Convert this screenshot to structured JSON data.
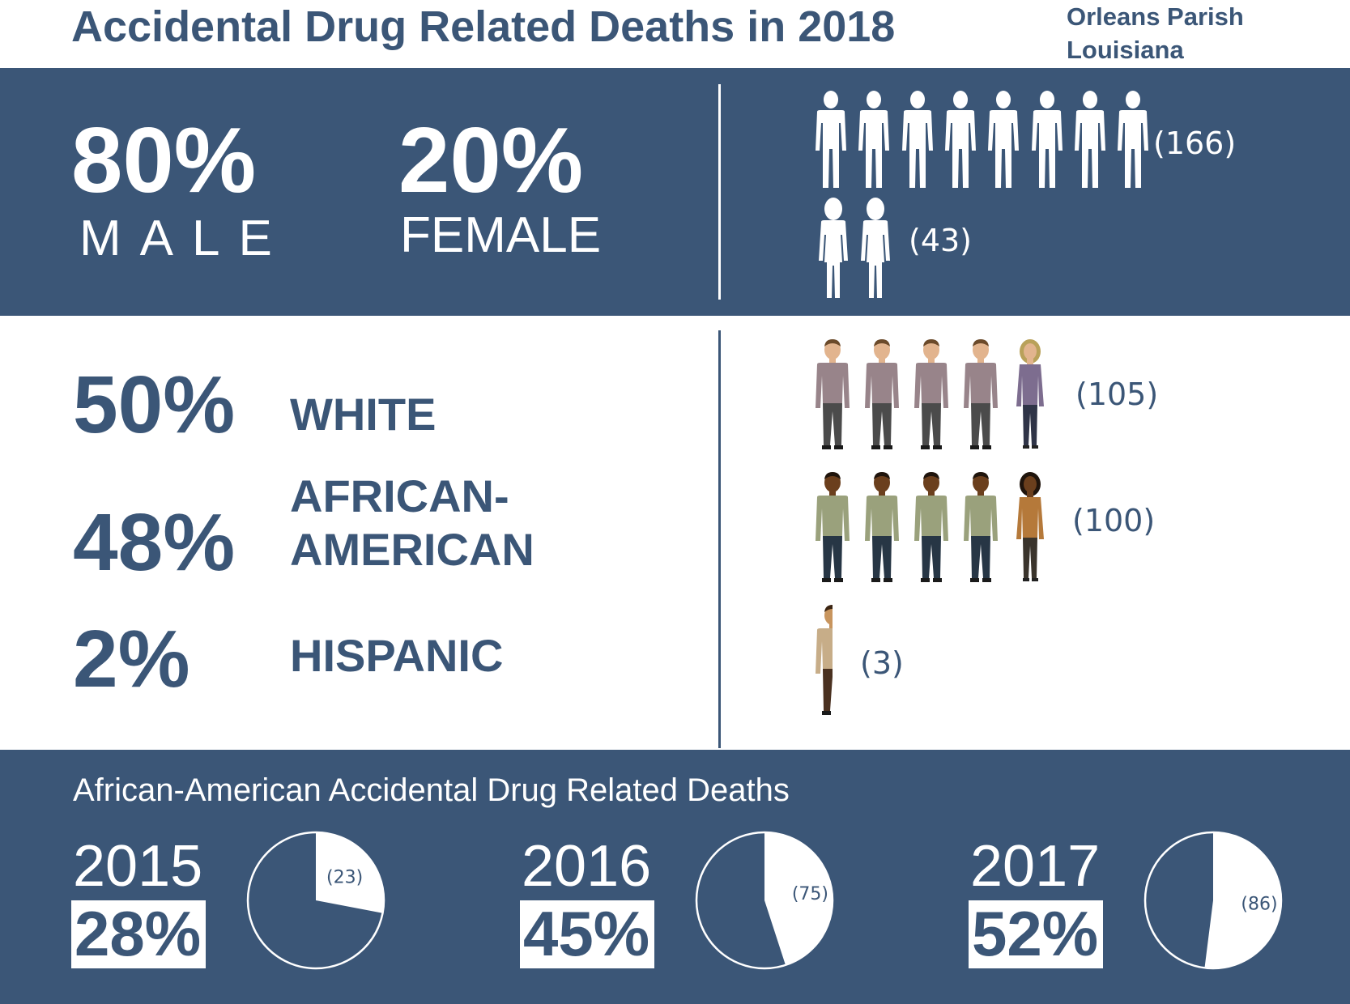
{
  "header": {
    "title": "Accidental Drug Related Deaths in 2018",
    "location_line1": "Orleans Parish",
    "location_line2": "Louisiana"
  },
  "sex": {
    "male_pct": "80%",
    "male_label": "MALE",
    "female_pct": "20%",
    "female_label": "FEMALE",
    "male_count": "(166)",
    "female_count": "(43)"
  },
  "race": {
    "white_pct": "50%",
    "white_label": "WHITE",
    "white_count": "(105)",
    "aa_pct": "48%",
    "aa_label_line1": "AFRICAN-",
    "aa_label_line2": "AMERICAN",
    "aa_count": "(100)",
    "hispanic_pct": "2%",
    "hispanic_label": "HISPANIC",
    "hispanic_count": "(3)"
  },
  "trend": {
    "heading": "African-American Accidental Drug Related Deaths"
  },
  "colors": {
    "navy": "#3b5677",
    "white": "#ffffff",
    "white_shirt": "#98848a",
    "white_pants": "#4b4b4b",
    "white_skin": "#e2b48e",
    "white_hair": "#6b4a2a",
    "aa_shirt": "#9aa17c",
    "aa_pants": "#273645",
    "aa_skin": "#6b3f1d",
    "hisp_shirt": "#c7ad88",
    "hisp_pants": "#4a3120"
  },
  "chart_data": [
    {
      "type": "pictogram",
      "title": "",
      "series": [
        {
          "name": "MALE",
          "icons": 8,
          "value": 166,
          "percent": 80
        },
        {
          "name": "FEMALE",
          "icons": 2,
          "value": 43,
          "percent": 20
        }
      ]
    },
    {
      "type": "pictogram",
      "title": "",
      "series": [
        {
          "name": "WHITE",
          "icons": 5,
          "value": 105,
          "percent": 50
        },
        {
          "name": "AFRICAN-AMERICAN",
          "icons": 5,
          "value": 100,
          "percent": 48
        },
        {
          "name": "HISPANIC",
          "icons": 0.5,
          "value": 3,
          "percent": 2
        }
      ]
    },
    {
      "type": "pie",
      "title": "African-American Accidental Drug Related Deaths",
      "pies": [
        {
          "year": "2015",
          "percent": 28,
          "percent_label": "28%",
          "count": 23,
          "count_label": "(23)"
        },
        {
          "year": "2016",
          "percent": 45,
          "percent_label": "45%",
          "count": 75,
          "count_label": "(75)"
        },
        {
          "year": "2017",
          "percent": 52,
          "percent_label": "52%",
          "count": 86,
          "count_label": "(86)"
        }
      ]
    }
  ]
}
